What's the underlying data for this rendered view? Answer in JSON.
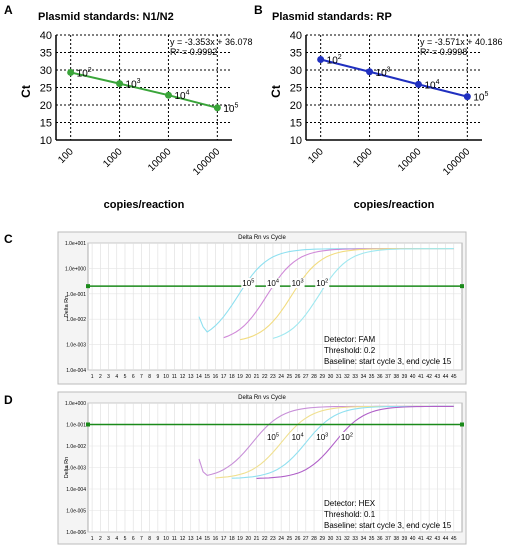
{
  "chart_data": [
    {
      "panel": "A",
      "type": "line",
      "title": "Plasmid standards: N1/N2",
      "xlabel": "copies/reaction",
      "ylabel": "Ct",
      "x_scale": "log10",
      "x_ticks": [
        "100",
        "1000",
        "10000",
        "100000"
      ],
      "ylim": [
        10,
        40
      ],
      "y_ticks": [
        10,
        15,
        20,
        25,
        30,
        35,
        40
      ],
      "grid": true,
      "equation": "y = -3.353x + 36.078",
      "r2": "R² = 0.9992",
      "color": "#3aa53a",
      "series": [
        {
          "x": [
            100,
            1000,
            10000,
            100000
          ],
          "y": [
            29.3,
            26.1,
            22.8,
            19.2
          ]
        }
      ],
      "point_labels": [
        {
          "base": "10",
          "exp": "2"
        },
        {
          "base": "10",
          "exp": "3"
        },
        {
          "base": "10",
          "exp": "4"
        },
        {
          "base": "10",
          "exp": "5"
        }
      ]
    },
    {
      "panel": "B",
      "type": "line",
      "title": "Plasmid standards: RP",
      "xlabel": "copies/reaction",
      "ylabel": "Ct",
      "x_scale": "log10",
      "x_ticks": [
        "100",
        "1000",
        "10000",
        "100000"
      ],
      "ylim": [
        10,
        40
      ],
      "y_ticks": [
        10,
        15,
        20,
        25,
        30,
        35,
        40
      ],
      "grid": true,
      "equation": "y = -3.571x + 40.186",
      "r2": "R² = 0.9998",
      "color": "#2030c0",
      "series": [
        {
          "x": [
            100,
            1000,
            10000,
            100000
          ],
          "y": [
            33.0,
            29.5,
            25.9,
            22.4
          ]
        }
      ],
      "point_labels": [
        {
          "base": "10",
          "exp": "2"
        },
        {
          "base": "10",
          "exp": "3"
        },
        {
          "base": "10",
          "exp": "4"
        },
        {
          "base": "10",
          "exp": "5"
        }
      ]
    },
    {
      "panel": "C",
      "type": "line",
      "title": "Delta Rn vs Cycle",
      "xlabel": "",
      "ylabel": "Delta Rn",
      "y_scale": "log10",
      "y_ticks": [
        "1.0e+001",
        "1.0e+000",
        "1.0e-001",
        "1.0e-002",
        "1.0e-003",
        "1.0e-004"
      ],
      "x_ticks": [
        1,
        2,
        3,
        4,
        5,
        6,
        7,
        8,
        9,
        10,
        11,
        12,
        13,
        14,
        15,
        16,
        17,
        18,
        19,
        20,
        21,
        22,
        23,
        24,
        25,
        26,
        27,
        28,
        29,
        30,
        31,
        32,
        33,
        34,
        35,
        36,
        37,
        38,
        39,
        40,
        41,
        42,
        43,
        44,
        45
      ],
      "threshold": 0.2,
      "threshold_color": "#1a8a1a",
      "curve_labels": [
        {
          "base": "10",
          "exp": "5",
          "cycle": 20
        },
        {
          "base": "10",
          "exp": "4",
          "cycle": 23
        },
        {
          "base": "10",
          "exp": "3",
          "cycle": 26
        },
        {
          "base": "10",
          "exp": "2",
          "cycle": 29
        }
      ],
      "series": [
        {
          "color": "#8fe0f0",
          "ct": 19.5
        },
        {
          "color": "#d08ad8",
          "ct": 23
        },
        {
          "color": "#f2dc80",
          "ct": 26
        },
        {
          "color": "#9fe8f0",
          "ct": 29.3
        }
      ],
      "info_lines": [
        "Detector: FAM",
        "Threshold: 0.2",
        "Baseline: start cycle 3, end cycle 15"
      ]
    },
    {
      "panel": "D",
      "type": "line",
      "title": "Delta Rn vs Cycle",
      "xlabel": "",
      "ylabel": "Delta Rn",
      "y_scale": "log10",
      "y_ticks": [
        "1.0e+000",
        "1.0e-001",
        "1.0e-002",
        "1.0e-003",
        "1.0e-004",
        "1.0e-005",
        "1.0e-006"
      ],
      "x_ticks": [
        1,
        2,
        3,
        4,
        5,
        6,
        7,
        8,
        9,
        10,
        11,
        12,
        13,
        14,
        15,
        16,
        17,
        18,
        19,
        20,
        21,
        22,
        23,
        24,
        25,
        26,
        27,
        28,
        29,
        30,
        31,
        32,
        33,
        34,
        35,
        36,
        37,
        38,
        39,
        40,
        41,
        42,
        43,
        44,
        45
      ],
      "threshold": 0.1,
      "threshold_color": "#1a8a1a",
      "curve_labels": [
        {
          "base": "10",
          "exp": "5",
          "cycle": 23
        },
        {
          "base": "10",
          "exp": "4",
          "cycle": 26
        },
        {
          "base": "10",
          "exp": "3",
          "cycle": 29
        },
        {
          "base": "10",
          "exp": "2",
          "cycle": 32
        }
      ],
      "series": [
        {
          "color": "#c890d8",
          "ct": 22.5
        },
        {
          "color": "#f0e090",
          "ct": 26
        },
        {
          "color": "#90e0f0",
          "ct": 29
        },
        {
          "color": "#b060c8",
          "ct": 32.5
        }
      ],
      "info_lines": [
        "Detector: HEX",
        "Threshold: 0.1",
        "Baseline: start cycle 3, end cycle 15"
      ]
    }
  ],
  "panel_letters": [
    "A",
    "B",
    "C",
    "D"
  ]
}
